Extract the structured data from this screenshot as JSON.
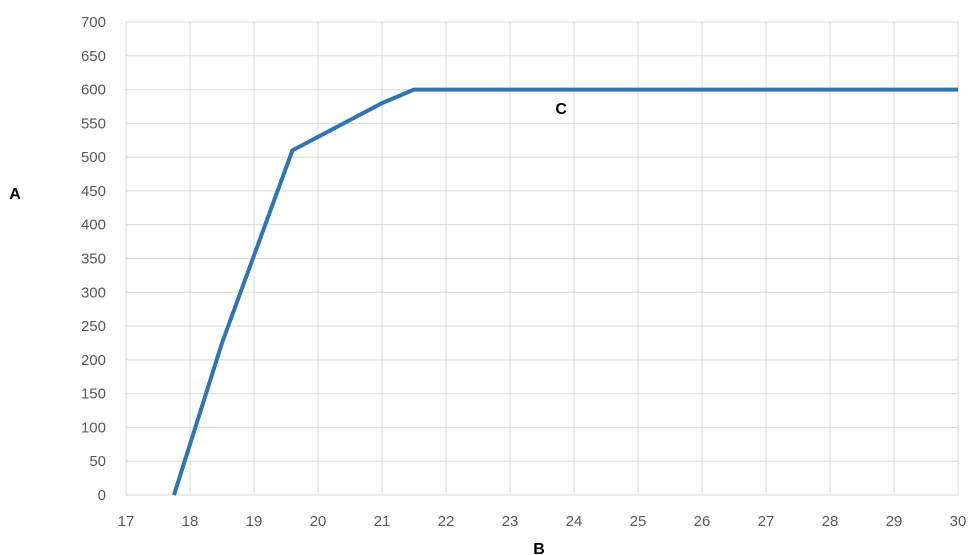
{
  "chart_data": {
    "type": "line",
    "title": "",
    "xlabel": "B",
    "ylabel": "A",
    "xlim": [
      17,
      30
    ],
    "ylim": [
      0,
      700
    ],
    "x_ticks": [
      "17",
      "18",
      "19",
      "20",
      "21",
      "22",
      "23",
      "24",
      "25",
      "26",
      "27",
      "28",
      "29",
      "30"
    ],
    "y_ticks": [
      "0",
      "50",
      "100",
      "150",
      "200",
      "250",
      "300",
      "350",
      "400",
      "450",
      "500",
      "550",
      "600",
      "650",
      "700"
    ],
    "grid": true,
    "series": [
      {
        "x": [
          17.75,
          18.5,
          19.6,
          20.0,
          20.5,
          21.0,
          21.5,
          30.0
        ],
        "y": [
          0,
          225,
          510,
          530,
          555,
          580,
          600,
          600
        ]
      }
    ],
    "annotations": [
      {
        "text": "C",
        "x": 23.8,
        "y": 573
      }
    ],
    "colors": {
      "series": "#2e75b6",
      "grid": "#d9d9d9",
      "tick_text": "#595959"
    }
  }
}
